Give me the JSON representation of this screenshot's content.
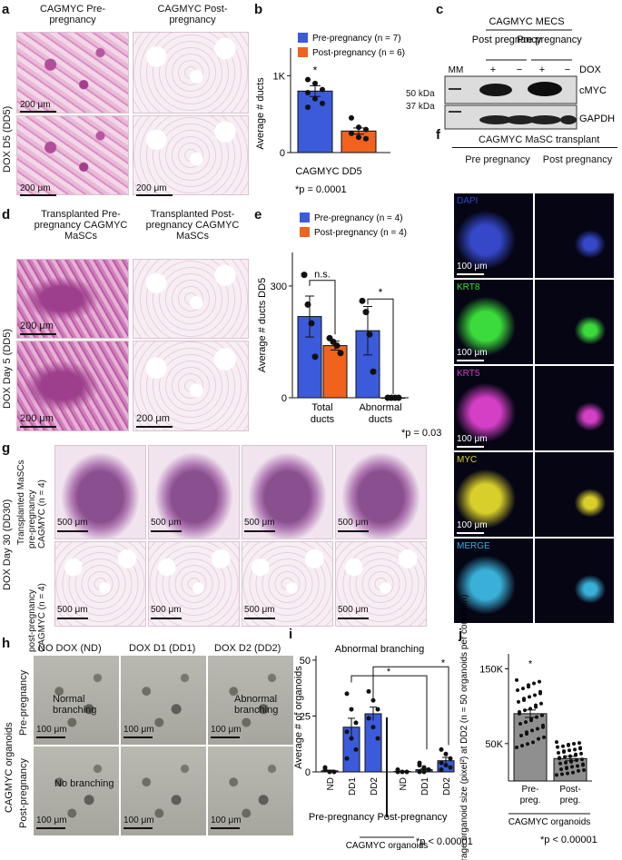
{
  "panels": {
    "a": {
      "label": "a",
      "col1": "CAGMYC Pre-pregnancy",
      "col2": "CAGMYC Post-pregnancy",
      "row_label": "DOX D5 (DD5)",
      "scale": "200 μm"
    },
    "b": {
      "label": "b",
      "legend": [
        "Pre-pregnancy (n = 7)",
        "Post-pregnancy (n = 6)"
      ],
      "ylabel": "Average # ducts",
      "ytick": "1K",
      "xlabel": "CAGMYC DD5",
      "pvalue": "*p = 0.0001",
      "star": "*"
    },
    "c": {
      "label": "c",
      "title": "CAGMYC MECS",
      "col_groups": [
        "Post pregnancy",
        "Pre pregnancy"
      ],
      "lanes": [
        "MM",
        "+",
        "−",
        "+",
        "−"
      ],
      "dox": "DOX",
      "markers": [
        "50 kDa",
        "37 kDa"
      ],
      "bands": [
        "cMYC",
        "GAPDH"
      ]
    },
    "d": {
      "label": "d",
      "col1": "Transplanted Pre-pregnancy CAGMYC MaSCs",
      "col2": "Transplanted Post-pregnancy CAGMYC MaSCs",
      "row_label": "DOX Day 5 (DD5)",
      "scale": "200 μm"
    },
    "e": {
      "label": "e",
      "legend": [
        "Pre-pregnancy (n = 4)",
        "Post-pregnancy (n = 4)"
      ],
      "ylabel": "Average # ducts DD5",
      "ns": "n.s.",
      "star": "*",
      "pvalue": "*p = 0.03",
      "categories": [
        "Total ducts",
        "Abnormal ducts"
      ]
    },
    "f": {
      "label": "f",
      "title": "CAGMYC MaSC transplant",
      "cols": [
        "Pre pregnancy",
        "Post pregnancy"
      ],
      "rows": [
        "DAPI",
        "KRT8",
        "KRT5",
        "MYC",
        "MERGE"
      ],
      "scale": "100 μm"
    },
    "g": {
      "label": "g",
      "row_label": "DOX Day 30 (DD30)",
      "group": "Transplanted MaSCs",
      "row1": "pre-pregnancy CAGMYC (n = 4)",
      "row2": "post-pregnancy CAGMYC (n = 4)",
      "scale": "500 μm"
    },
    "h": {
      "label": "h",
      "cols": [
        "NO DOX (ND)",
        "DOX D1 (DD1)",
        "DOX D2 (DD2)"
      ],
      "rows": [
        "Pre-pregnancy",
        "Post-pregnancy"
      ],
      "group": "CAGMYC organoids",
      "annotations": [
        "Normal branching",
        "Abnormal branching",
        "No branching"
      ],
      "scale": "100 μm"
    },
    "i": {
      "label": "i",
      "title": "Abnormal branching",
      "ylabel": "Average # of organoids",
      "groups": [
        "Pre-pregnancy",
        "Post-pregnancy"
      ],
      "group_caption": "CAGMYC organoids",
      "pvalue": "*p < 0.00001",
      "star": "*"
    },
    "j": {
      "label": "j",
      "ylabel": "Average organoid size (pixel²) at DD2 (n = 50 organoids per condition)",
      "categories": [
        "Pre-preg.",
        "Post-preg."
      ],
      "group_caption": "CAGMYC organoids",
      "pvalue": "*p < 0.00001",
      "star": "*"
    }
  },
  "colors": {
    "pre": "#3b5bdb",
    "post": "#f0621e"
  },
  "chart_data": [
    {
      "panel": "b",
      "type": "bar",
      "categories": [
        "Pre-pregnancy",
        "Post-pregnancy"
      ],
      "values": [
        800,
        280
      ],
      "errors": [
        70,
        40
      ],
      "points": [
        [
          950,
          900,
          820,
          780,
          700,
          640,
          590
        ],
        [
          450,
          330,
          300,
          250,
          200,
          180
        ]
      ],
      "ylim": [
        0,
        1300
      ],
      "yticks": [
        0,
        1000
      ]
    },
    {
      "panel": "e",
      "type": "bar",
      "categories": [
        "Total ducts",
        "Abnormal ducts"
      ],
      "series": [
        {
          "name": "Pre-pregnancy (n = 4)",
          "values": [
            218,
            180
          ],
          "errors": [
            55,
            65
          ],
          "points": [
            [
              330,
              250,
              200,
              110
            ],
            [
              260,
              230,
              170,
              70
            ]
          ]
        },
        {
          "name": "Post-pregnancy (n = 4)",
          "values": [
            140,
            0
          ],
          "errors": [
            12,
            0
          ],
          "points": [
            [
              160,
              150,
              140,
              120
            ],
            [
              0,
              0,
              0,
              0
            ]
          ]
        }
      ],
      "ylim": [
        0,
        390
      ],
      "yticks": [
        0,
        300
      ]
    },
    {
      "panel": "i",
      "type": "bar",
      "categories": [
        "ND",
        "DD1",
        "DD2",
        "ND",
        "DD1",
        "DD2"
      ],
      "values": [
        0.5,
        20,
        26,
        0.2,
        1,
        5
      ],
      "errors": [
        0.3,
        4,
        3,
        0.2,
        0.5,
        1.5
      ],
      "ylim": [
        0,
        52
      ],
      "yticks": [
        0,
        25,
        50
      ]
    },
    {
      "panel": "j",
      "type": "bar",
      "categories": [
        "Pre-preg.",
        "Post-preg."
      ],
      "values": [
        90000,
        30000
      ],
      "errors": [
        5000,
        3000
      ],
      "ylim": [
        0,
        170000
      ],
      "yticks": [
        50000,
        150000
      ],
      "ytick_labels": [
        "50K",
        "150K"
      ]
    }
  ]
}
